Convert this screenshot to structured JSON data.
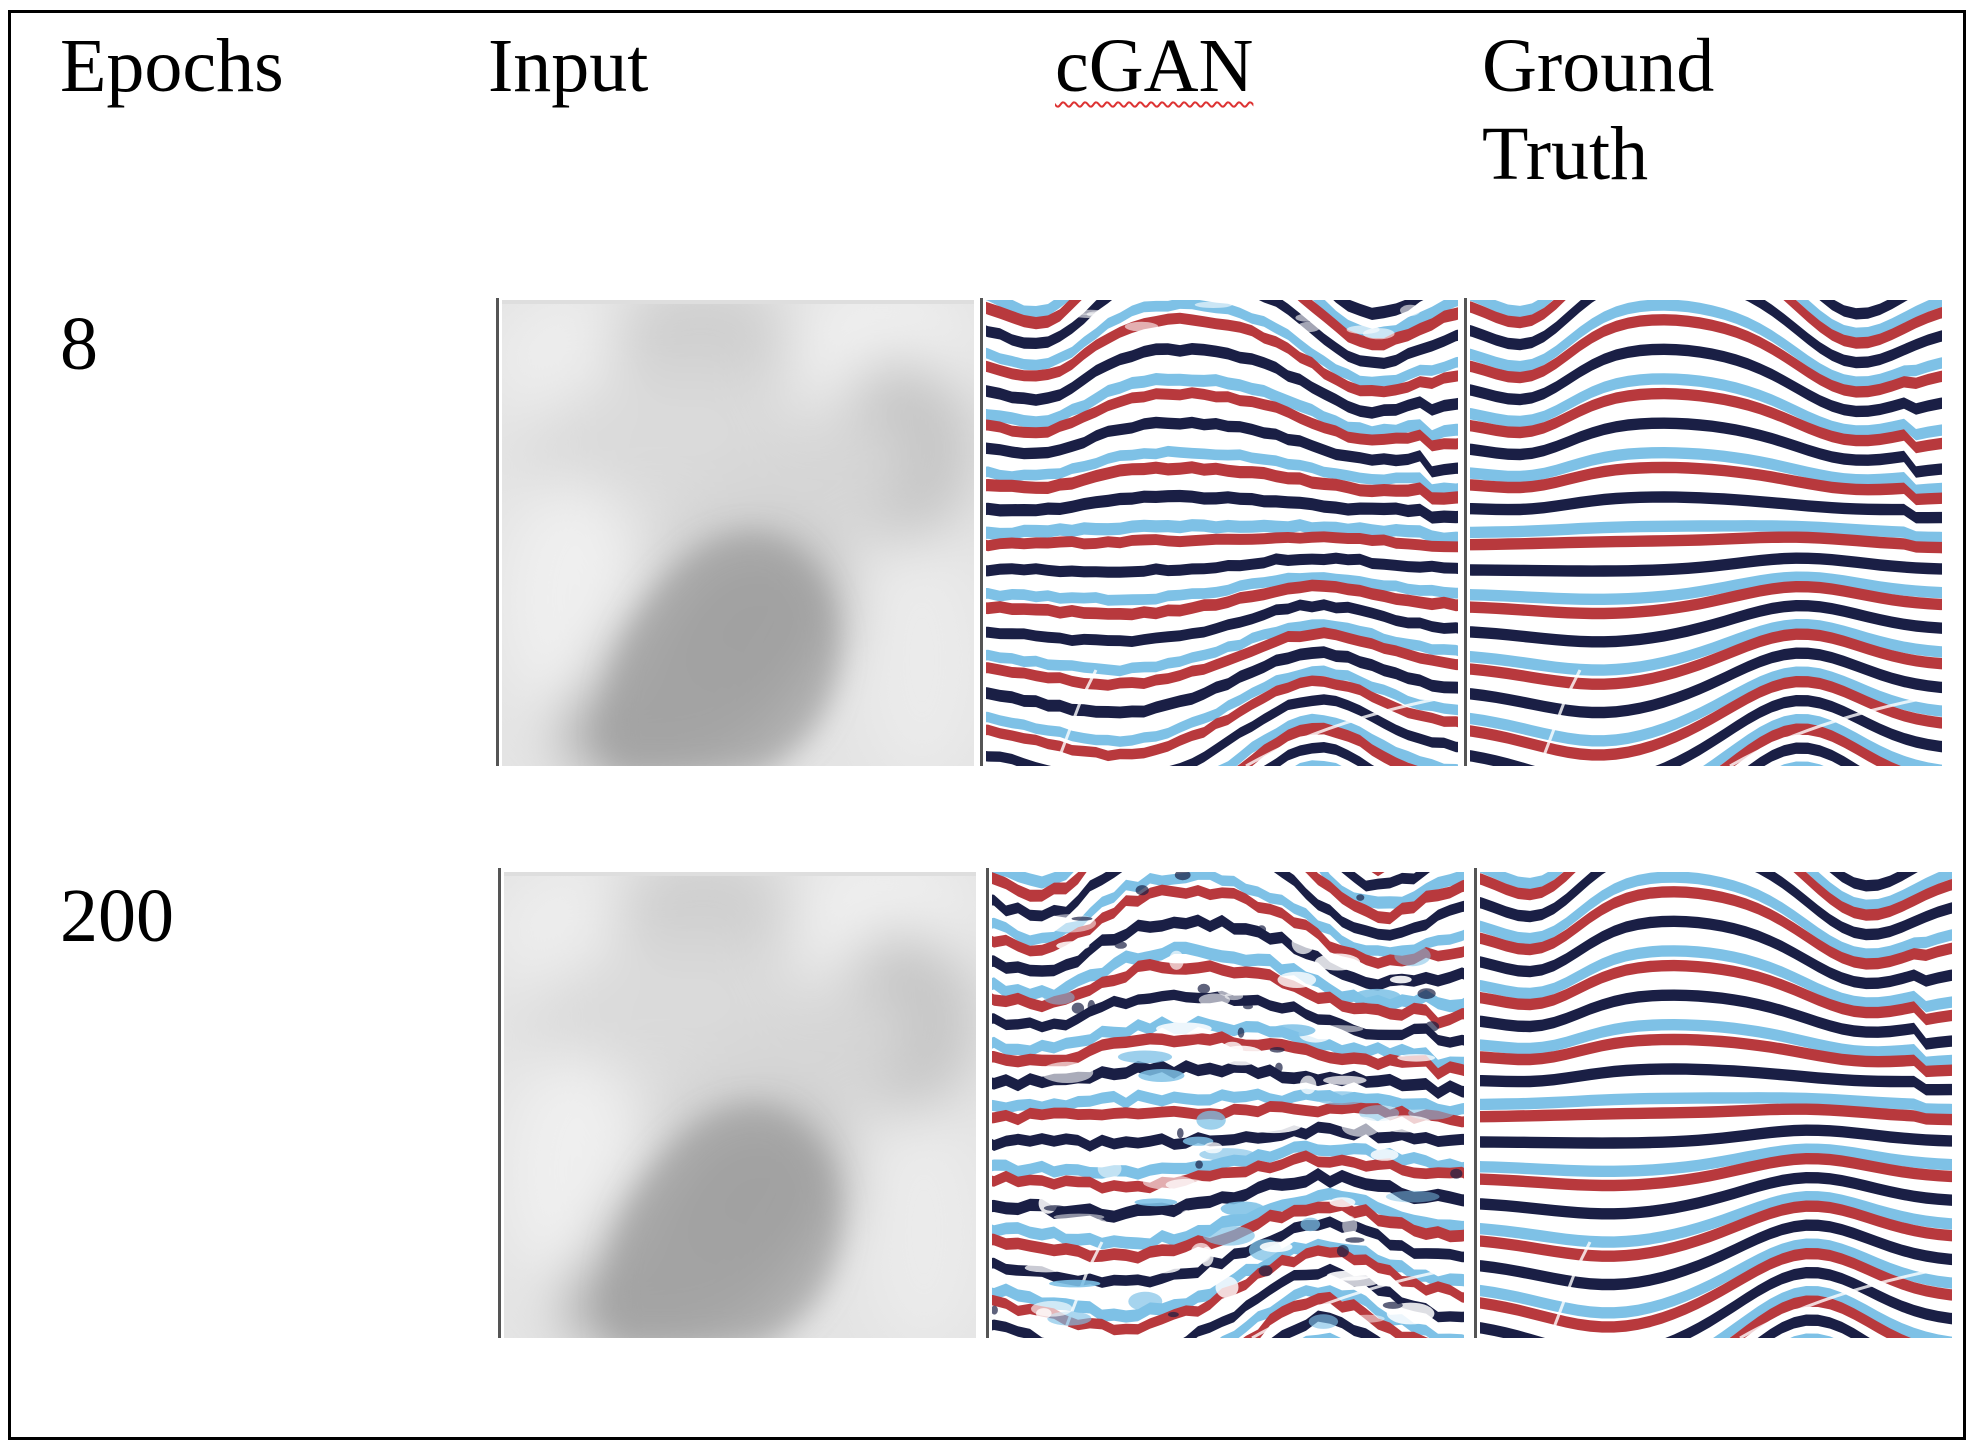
{
  "header": {
    "epochs": "Epochs",
    "input": "Input",
    "cgan": "cGAN",
    "ground_truth_line1": "Ground",
    "ground_truth_line2": "Truth"
  },
  "rows": [
    {
      "epochs": "8"
    },
    {
      "epochs": "200"
    }
  ],
  "colors": {
    "red": "#b8393d",
    "navy": "#1a1f45",
    "sky": "#7ec1e6",
    "white": "#ffffff"
  }
}
